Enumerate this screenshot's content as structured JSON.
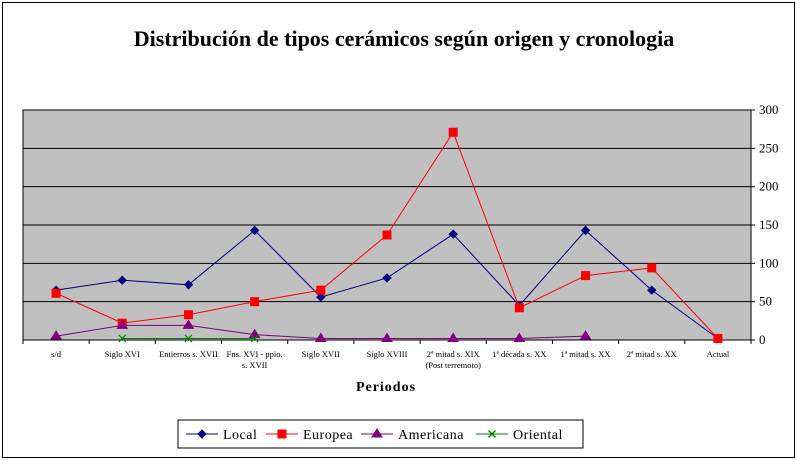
{
  "chart_data": {
    "type": "line",
    "title": "Distribución de tipos cerámicos según origen y cronologia",
    "xlabel": "Periodos",
    "ylabel": "",
    "ylim": [
      0,
      300
    ],
    "yticks": [
      0,
      50,
      100,
      150,
      200,
      250,
      300
    ],
    "y_axis_side": "right",
    "grid": "horizontal",
    "plot_background": "#c0c0c0",
    "legend_position": "bottom",
    "categories": [
      [
        "s/d"
      ],
      [
        "Siglo XVI"
      ],
      [
        "Entierros s. XVII"
      ],
      [
        "Fns. XVI - ppio.",
        "s. XVII"
      ],
      [
        "Siglo XVII"
      ],
      [
        "Siglo XVIII"
      ],
      [
        "2ª mitad s. XIX",
        "(Post terremoto)"
      ],
      [
        "1ª década s. XX"
      ],
      [
        "1ª mitad s. XX"
      ],
      [
        "2ª mitad s. XX"
      ],
      [
        "Actual"
      ]
    ],
    "series": [
      {
        "name": "Local",
        "color": "#000080",
        "marker": "diamond",
        "values": [
          65,
          78,
          72,
          143,
          56,
          81,
          138,
          45,
          143,
          65,
          2
        ]
      },
      {
        "name": "Europea",
        "color": "#ff0000",
        "marker": "square",
        "values": [
          61,
          22,
          33,
          50,
          65,
          137,
          271,
          42,
          84,
          94,
          2
        ]
      },
      {
        "name": "Americana",
        "color": "#800080",
        "marker": "triangle",
        "values": [
          5,
          19,
          19,
          7,
          2,
          2,
          2,
          2,
          5,
          null,
          null
        ]
      },
      {
        "name": "Oriental",
        "color": "#008000",
        "marker": "x",
        "values": [
          null,
          2,
          2,
          2,
          null,
          null,
          null,
          null,
          null,
          null,
          null
        ]
      }
    ]
  }
}
